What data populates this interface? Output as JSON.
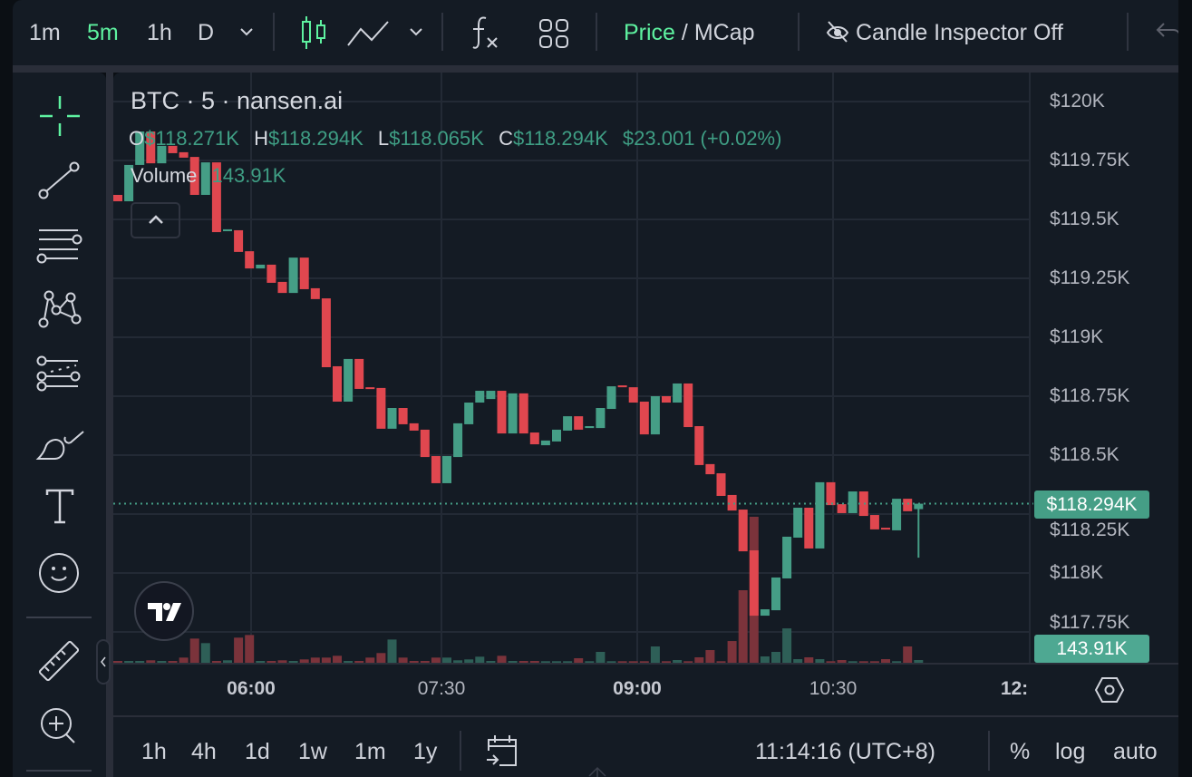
{
  "toolbar": {
    "intervals": [
      "1m",
      "5m",
      "1h",
      "D"
    ],
    "active_interval": "5m",
    "price_label": "Price",
    "slash": "/",
    "mcap_label": "MCap",
    "candle_inspector_label": "Candle Inspector Off",
    "icons": [
      "chevron-down-icon",
      "candles-icon",
      "line-chart-icon",
      "chevron-down-icon",
      "indicators-fx-icon",
      "layout-grid-icon",
      "eye-off-icon",
      "undo-icon"
    ]
  },
  "left_toolbar": {
    "tools": [
      "crosshair-icon",
      "trend-line-icon",
      "horizontal-lines-icon",
      "pattern-icon",
      "fib-retracement-icon",
      "brush-icon",
      "text-icon",
      "emoji-icon",
      "ruler-icon",
      "zoom-in-icon"
    ]
  },
  "legend": {
    "title": "BTC · 5 · nansen.ai",
    "o_label": "O",
    "o_value": "$118.271K",
    "h_label": "H",
    "h_value": "$118.294K",
    "l_label": "L",
    "l_value": "$118.065K",
    "c_label": "C",
    "c_value": "$118.294K",
    "change": "$23.001 (+0.02%)",
    "volume_label": "Volume",
    "volume_value": "143.91K"
  },
  "price_axis": {
    "labels": [
      "$120K",
      "$119.75K",
      "$119.5K",
      "$119.25K",
      "$119K",
      "$118.75K",
      "$118.5K",
      "$118.25K",
      "$118K",
      "$117.75K"
    ],
    "current_price_tag": "$118.294K",
    "volume_tag": "143.91K"
  },
  "time_axis": {
    "labels": [
      {
        "text": "06:00",
        "bold": true
      },
      {
        "text": "07:30",
        "bold": false
      },
      {
        "text": "09:00",
        "bold": true
      },
      {
        "text": "10:30",
        "bold": false
      },
      {
        "text": "12:",
        "bold": true
      }
    ]
  },
  "bottom_bar": {
    "ranges": [
      "1h",
      "4h",
      "1d",
      "1w",
      "1m",
      "1y"
    ],
    "clock": "11:14:16 (UTC+8)",
    "percent_label": "%",
    "log_label": "log",
    "auto_label": "auto"
  },
  "colors": {
    "up": "#459e86",
    "down": "#e0474f",
    "volume_up": "#2e5f57",
    "volume_down": "#7b333b",
    "accent": "#5ef2a0",
    "background": "#141b24"
  },
  "chart_data": {
    "type": "candlestick",
    "symbol": "BTC",
    "interval": "5",
    "price_unit": "K USD",
    "ylim": [
      117.72,
      120.12
    ],
    "y_ticks": [
      120,
      119.75,
      119.5,
      119.25,
      119,
      118.75,
      118.5,
      118.25,
      118,
      117.75
    ],
    "x_ticks": [
      "06:00",
      "07:30",
      "09:00",
      "10:30",
      "12:"
    ],
    "grid": true,
    "last_price": 118.294,
    "candles_oc": [
      [
        119.604,
        119.577
      ],
      [
        119.577,
        119.731
      ],
      [
        119.731,
        119.873
      ],
      [
        119.873,
        119.738
      ],
      [
        119.738,
        119.812
      ],
      [
        119.812,
        119.781
      ],
      [
        119.785,
        119.762
      ],
      [
        119.765,
        119.604
      ],
      [
        119.604,
        119.742
      ],
      [
        119.742,
        119.446
      ],
      [
        119.45,
        119.458
      ],
      [
        119.454,
        119.362
      ],
      [
        119.365,
        119.292
      ],
      [
        119.292,
        119.308
      ],
      [
        119.308,
        119.231
      ],
      [
        119.235,
        119.188
      ],
      [
        119.188,
        119.338
      ],
      [
        119.338,
        119.204
      ],
      [
        119.208,
        119.162
      ],
      [
        119.165,
        118.873
      ],
      [
        118.877,
        118.727
      ],
      [
        118.727,
        118.908
      ],
      [
        118.908,
        118.781
      ],
      [
        118.788,
        118.781
      ],
      [
        118.785,
        118.612
      ],
      [
        118.612,
        118.7
      ],
      [
        118.7,
        118.631
      ],
      [
        118.635,
        118.604
      ],
      [
        118.608,
        118.492
      ],
      [
        118.496,
        118.381
      ],
      [
        118.381,
        118.496
      ],
      [
        118.492,
        118.635
      ],
      [
        118.631,
        118.723
      ],
      [
        118.723,
        118.773
      ],
      [
        118.738,
        118.773
      ],
      [
        118.773,
        118.592
      ],
      [
        118.592,
        118.762
      ],
      [
        118.762,
        118.592
      ],
      [
        118.596,
        118.546
      ],
      [
        118.542,
        118.562
      ],
      [
        118.558,
        118.608
      ],
      [
        118.604,
        118.665
      ],
      [
        118.665,
        118.608
      ],
      [
        118.615,
        118.623
      ],
      [
        118.615,
        118.7
      ],
      [
        118.696,
        118.792
      ],
      [
        118.796,
        118.788
      ],
      [
        118.788,
        118.723
      ],
      [
        118.727,
        118.588
      ],
      [
        118.588,
        118.75
      ],
      [
        118.75,
        118.723
      ],
      [
        118.723,
        118.804
      ],
      [
        118.804,
        118.619
      ],
      [
        118.623,
        118.458
      ],
      [
        118.462,
        118.419
      ],
      [
        118.423,
        118.327
      ],
      [
        118.331,
        118.265
      ],
      [
        118.269,
        118.092
      ],
      [
        118.096,
        117.819
      ],
      [
        117.819,
        117.846
      ],
      [
        117.842,
        117.981
      ],
      [
        117.977,
        118.154
      ],
      [
        118.15,
        118.277
      ],
      [
        118.277,
        118.104
      ],
      [
        118.104,
        118.385
      ],
      [
        118.385,
        118.288
      ],
      [
        118.292,
        118.254
      ],
      [
        118.254,
        118.346
      ],
      [
        118.346,
        118.242
      ],
      [
        118.246,
        118.185
      ],
      [
        118.192,
        118.185
      ],
      [
        118.181,
        118.315
      ],
      [
        118.315,
        118.262
      ],
      [
        118.271,
        118.294
      ]
    ],
    "last_candle": {
      "open": 118.271,
      "high": 118.294,
      "low": 118.065,
      "close": 118.294
    },
    "volume_k": [
      96,
      96,
      96,
      130,
      96,
      96,
      274,
      1280,
      1040,
      96,
      130,
      1330,
      1470,
      96,
      96,
      130,
      96,
      178,
      274,
      274,
      370,
      96,
      96,
      274,
      514,
      1230,
      274,
      96,
      96,
      274,
      274,
      130,
      178,
      322,
      96,
      370,
      96,
      96,
      96,
      82,
      82,
      82,
      240,
      82,
      576,
      82,
      82,
      82,
      82,
      864,
      82,
      144,
      82,
      288,
      672,
      82,
      1150,
      3840,
      7730,
      336,
      576,
      1820,
      192,
      288,
      192,
      82,
      144,
      82,
      82,
      82,
      192,
      82,
      864,
      143.91
    ]
  }
}
